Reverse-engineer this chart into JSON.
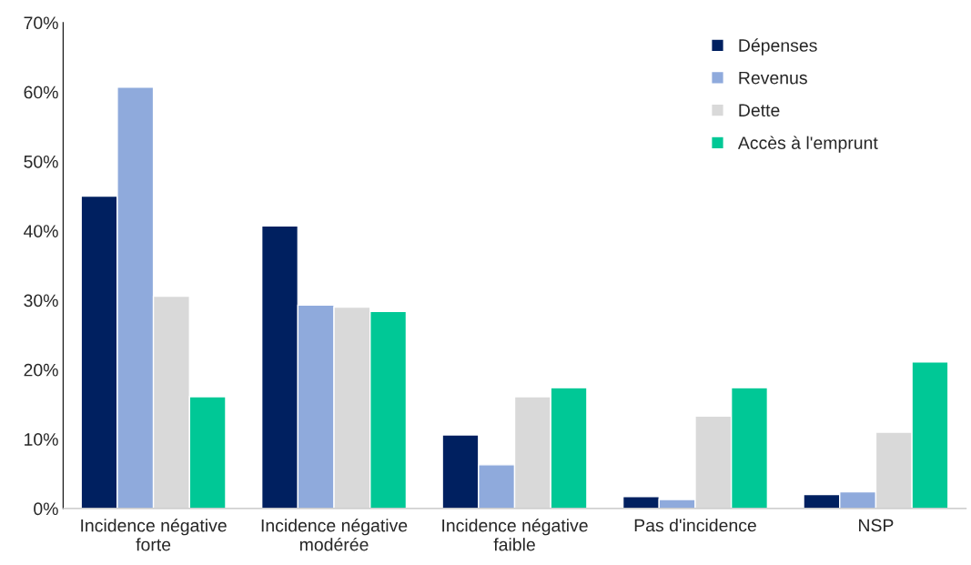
{
  "chart_data": {
    "type": "bar",
    "categories": [
      "Incidence négative\nforte",
      "Incidence négative\nmodérée",
      "Incidence négative\nfaible",
      "Pas d'incidence",
      "NSP"
    ],
    "series": [
      {
        "name": "Dépenses",
        "color": "#002060",
        "values": [
          45.0,
          40.7,
          10.6,
          1.7,
          2.0
        ]
      },
      {
        "name": "Revenus",
        "color": "#8faadc",
        "values": [
          60.7,
          29.3,
          6.3,
          1.3,
          2.4
        ]
      },
      {
        "name": "Dette",
        "color": "#d9d9d9",
        "values": [
          30.6,
          29.0,
          16.1,
          13.3,
          11.0
        ]
      },
      {
        "name": "Accès à l'emprunt",
        "color": "#00c896",
        "values": [
          16.1,
          28.4,
          17.4,
          17.4,
          21.1
        ]
      }
    ],
    "ylim": [
      0,
      70
    ],
    "yticks": [
      {
        "value": 0,
        "label": "0%"
      },
      {
        "value": 10,
        "label": "10%"
      },
      {
        "value": 20,
        "label": "20%"
      },
      {
        "value": 30,
        "label": "30%"
      },
      {
        "value": 40,
        "label": "40%"
      },
      {
        "value": 50,
        "label": "50%"
      },
      {
        "value": 60,
        "label": "60%"
      },
      {
        "value": 70,
        "label": "70%"
      }
    ],
    "grid": false,
    "legend": "top right"
  }
}
